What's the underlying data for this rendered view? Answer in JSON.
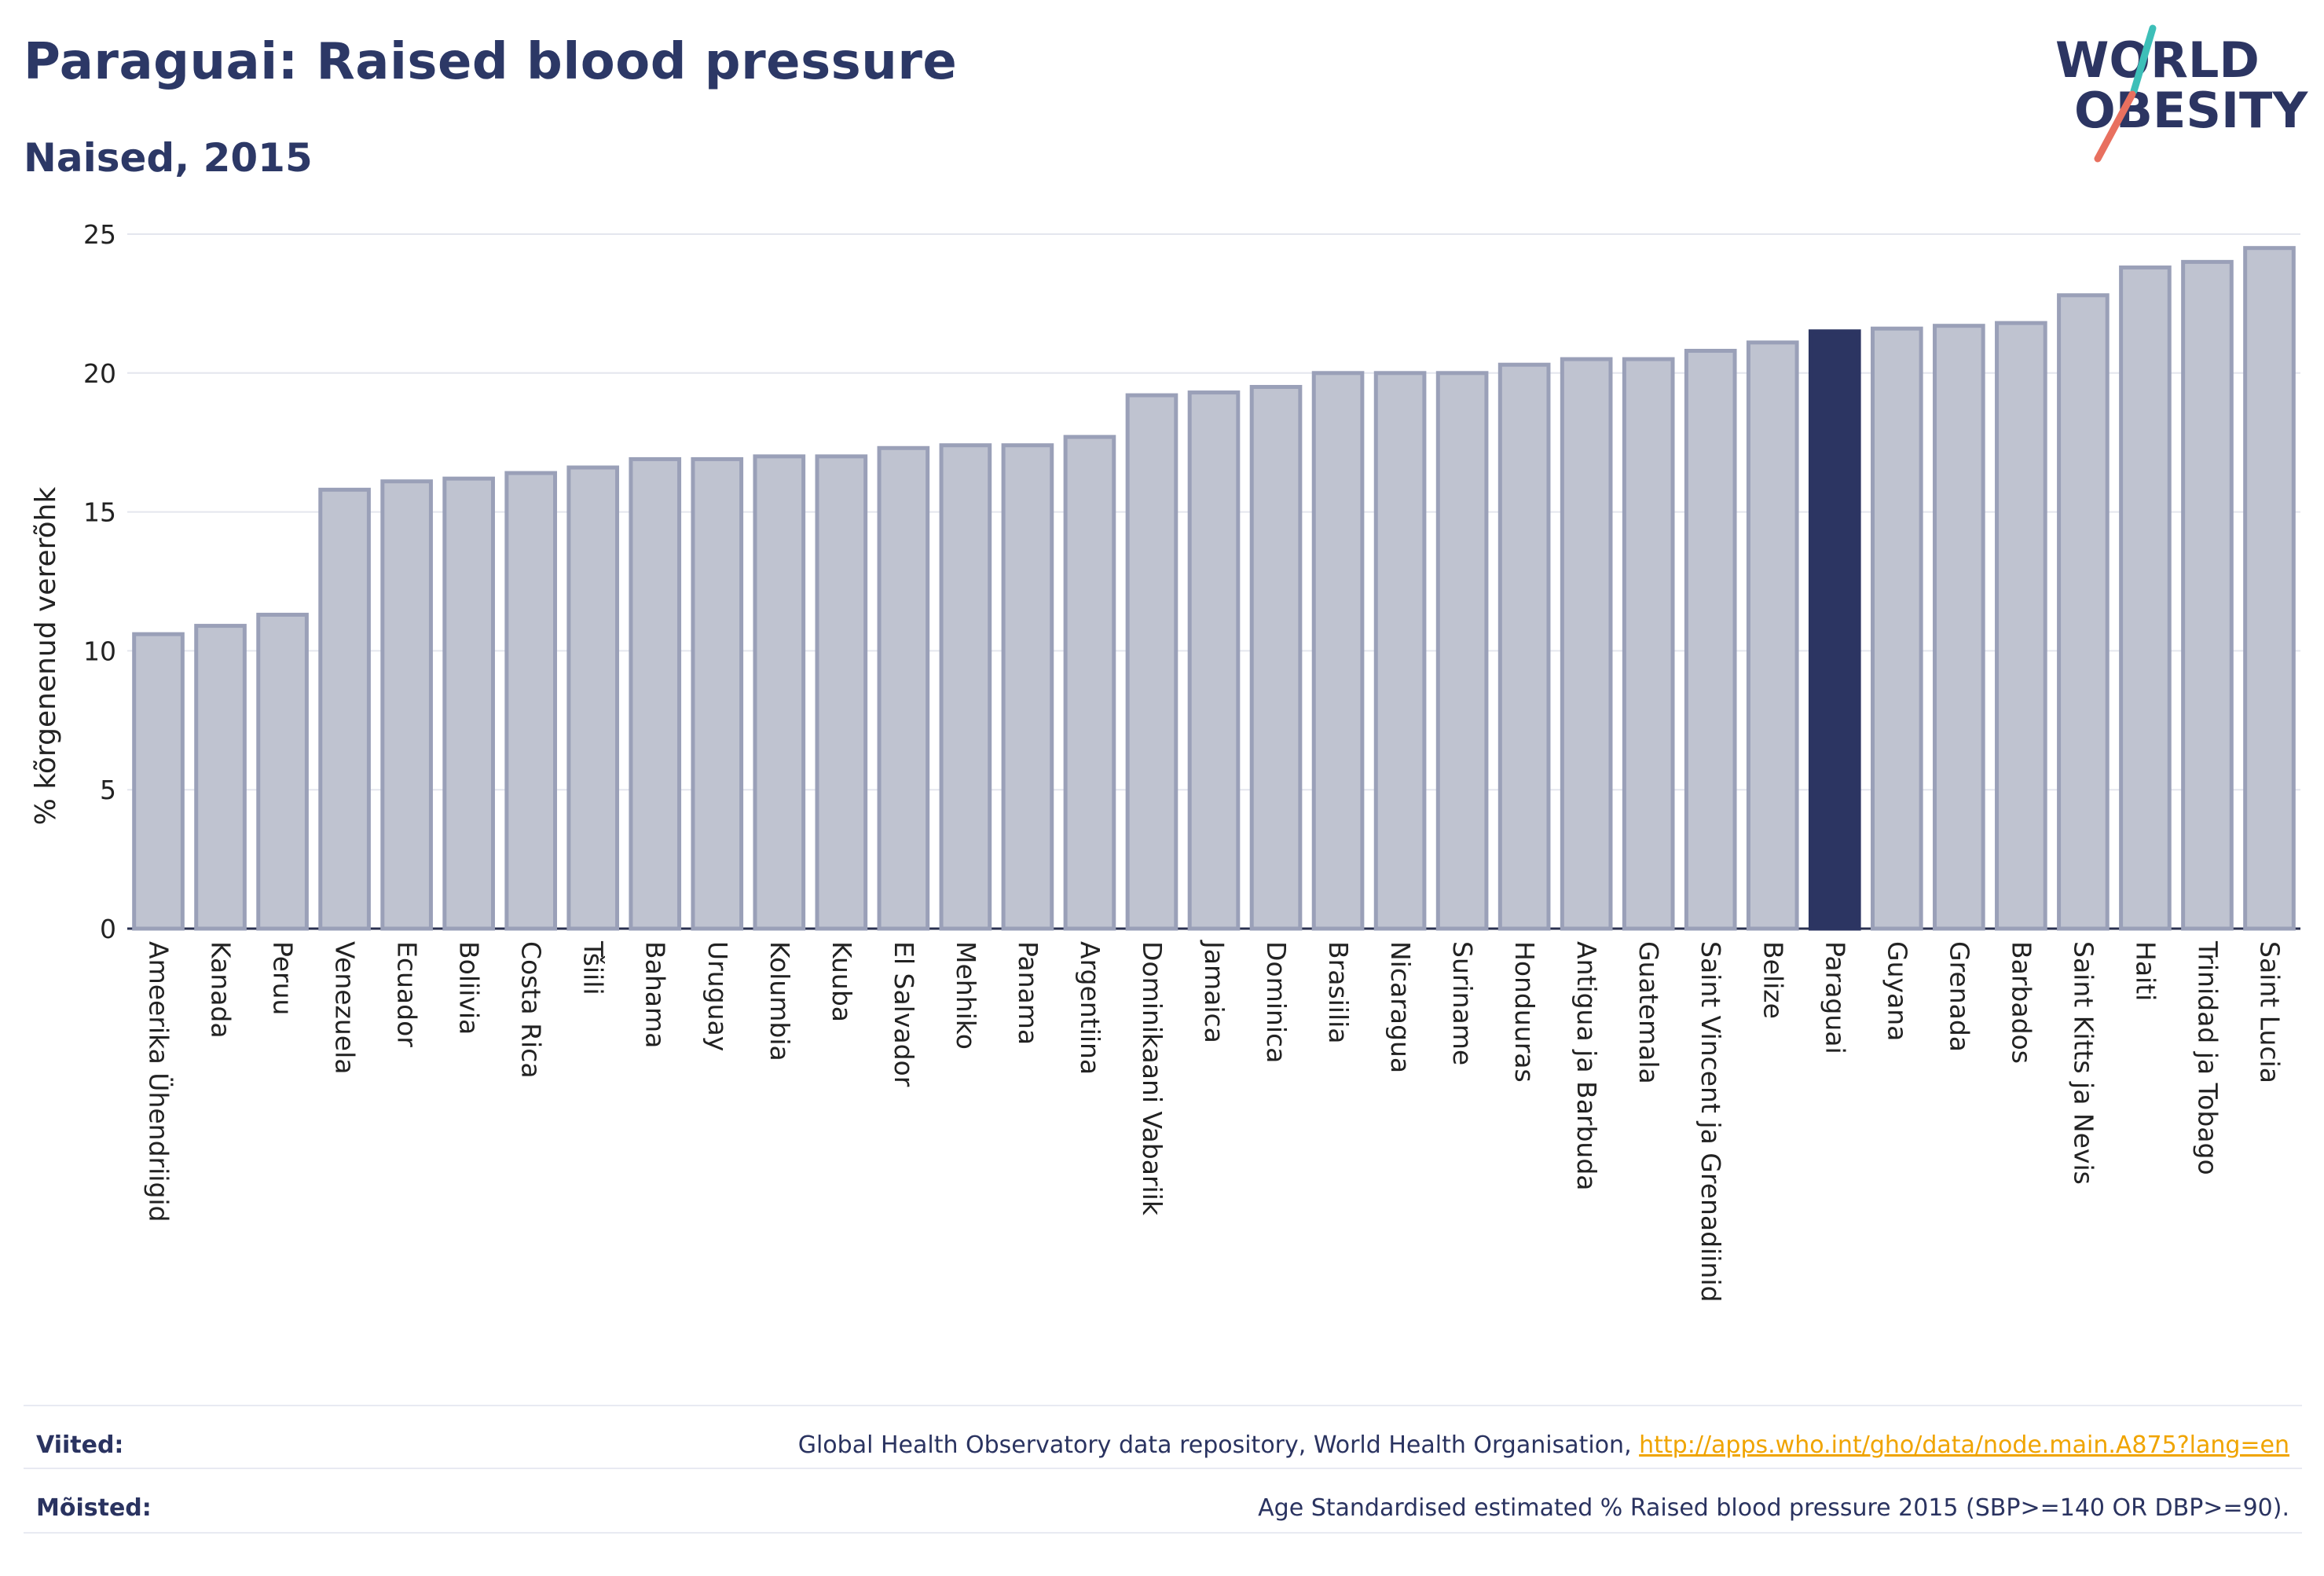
{
  "header": {
    "title": "Paraguai: Raised blood pressure",
    "subtitle": "Naised, 2015"
  },
  "logo": {
    "line1": "WORLD",
    "line2": "OBESITY"
  },
  "colors": {
    "highlight": "#2c3562",
    "bar_fill": "#bfc3d0",
    "bar_edge": "#9aa0b8",
    "title": "#2c3866",
    "link": "#f0a400",
    "logo_teal": "#3dbfb8",
    "logo_coral": "#e8705f"
  },
  "chart_data": {
    "type": "bar",
    "title": "Paraguai: Raised blood pressure",
    "subtitle": "Naised, 2015",
    "ylabel": "% kõrgenenud vererõhk",
    "xlabel": "",
    "ylim": [
      0,
      25
    ],
    "yticks": [
      "0",
      "5",
      "10",
      "15",
      "20",
      "25"
    ],
    "grid": true,
    "highlight": "Paraguai",
    "categories": [
      "Ameerika Ühendriigid",
      "Kanada",
      "Peruu",
      "Venezuela",
      "Ecuador",
      "Boliivia",
      "Costa Rica",
      "Tšiili",
      "Bahama",
      "Uruguay",
      "Kolumbia",
      "Kuuba",
      "El Salvador",
      "Mehhiko",
      "Panama",
      "Argentiina",
      "Dominikaani Vabariik",
      "Jamaica",
      "Dominica",
      "Brasiilia",
      "Nicaragua",
      "Suriname",
      "Honduuras",
      "Antigua ja Barbuda",
      "Guatemala",
      "Saint Vincent ja Grenadiinid",
      "Belize",
      "Paraguai",
      "Guyana",
      "Grenada",
      "Barbados",
      "Saint Kitts ja Nevis",
      "Haiti",
      "Trinidad ja Tobago",
      "Saint Lucia"
    ],
    "values": [
      10.6,
      10.9,
      11.3,
      15.8,
      16.1,
      16.2,
      16.4,
      16.6,
      16.9,
      16.9,
      17.0,
      17.0,
      17.3,
      17.4,
      17.4,
      17.7,
      19.2,
      19.3,
      19.5,
      20.0,
      20.0,
      20.0,
      20.3,
      20.5,
      20.5,
      20.8,
      21.1,
      21.5,
      21.6,
      21.7,
      21.8,
      22.8,
      23.8,
      24.0,
      24.5
    ]
  },
  "footer": {
    "sources_label": "Viited:",
    "sources_text": "Global Health Observatory data repository, World Health Organisation, ",
    "sources_link": "http://apps.who.int/gho/data/node.main.A875?lang=en",
    "definitions_label": "Mõisted:",
    "definitions_text": "Age Standardised estimated % Raised blood pressure 2015 (SBP>=140 OR DBP>=90)."
  }
}
